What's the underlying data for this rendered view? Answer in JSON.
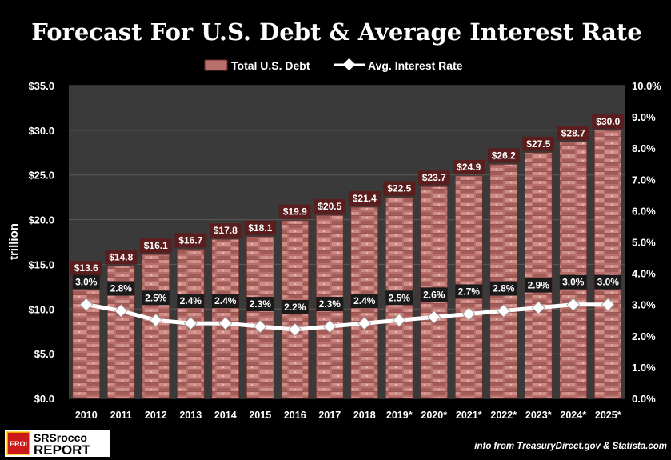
{
  "chart_data": {
    "type": "bar",
    "title": "Forecast For U.S. Debt & Average Interest Rate",
    "categories": [
      "2010",
      "2011",
      "2012",
      "2013",
      "2014",
      "2015",
      "2016",
      "2017",
      "2018",
      "2019*",
      "2020*",
      "2021*",
      "2022*",
      "2023*",
      "2024*",
      "2025*"
    ],
    "series": [
      {
        "name": "Total U.S. Debt",
        "type": "bar",
        "axis": "left",
        "values": [
          13.6,
          14.8,
          16.1,
          16.7,
          17.8,
          18.1,
          19.9,
          20.5,
          21.4,
          22.5,
          23.7,
          24.9,
          26.2,
          27.5,
          28.7,
          30.0
        ],
        "labels": [
          "$13.6",
          "$14.8",
          "$16.1",
          "$16.7",
          "$17.8",
          "$18.1",
          "$19.9",
          "$20.5",
          "$21.4",
          "$22.5",
          "$23.7",
          "$24.9",
          "$26.2",
          "$27.5",
          "$28.7",
          "$30.0"
        ],
        "color": "#b8706c"
      },
      {
        "name": "Avg. Interest Rate",
        "type": "line",
        "axis": "right",
        "values": [
          3.0,
          2.8,
          2.5,
          2.4,
          2.4,
          2.3,
          2.2,
          2.3,
          2.4,
          2.5,
          2.6,
          2.7,
          2.8,
          2.9,
          3.0,
          3.0
        ],
        "labels": [
          "3.0%",
          "2.8%",
          "2.5%",
          "2.4%",
          "2.4%",
          "2.3%",
          "2.2%",
          "2.3%",
          "2.4%",
          "2.5%",
          "2.6%",
          "2.7%",
          "2.8%",
          "2.9%",
          "3.0%",
          "3.0%"
        ],
        "color": "#ffffff"
      }
    ],
    "ylabel": "trillion",
    "ylim": [
      0,
      35
    ],
    "y_ticks": [
      "$0.0",
      "$5.0",
      "$10.0",
      "$15.0",
      "$20.0",
      "$25.0",
      "$30.0",
      "$35.0"
    ],
    "y2lim": [
      0,
      10
    ],
    "y2_ticks": [
      "0.0%",
      "1.0%",
      "2.0%",
      "3.0%",
      "4.0%",
      "5.0%",
      "6.0%",
      "7.0%",
      "8.0%",
      "9.0%",
      "10.0%"
    ],
    "grid": true,
    "legend_position": "top-center"
  },
  "branding": {
    "logo_badge": "EROI",
    "logo_line1": "SRSrocco",
    "logo_line2": "REPORT"
  },
  "source_note": "info from TreasuryDirect.gov & Statista.com",
  "colors": {
    "background": "#000000",
    "plot_area": "#3a3a3a",
    "bar": "#b8706c",
    "bar_label_bg": "#5a1e1e",
    "line_label_bg": "#1a1a1a"
  }
}
